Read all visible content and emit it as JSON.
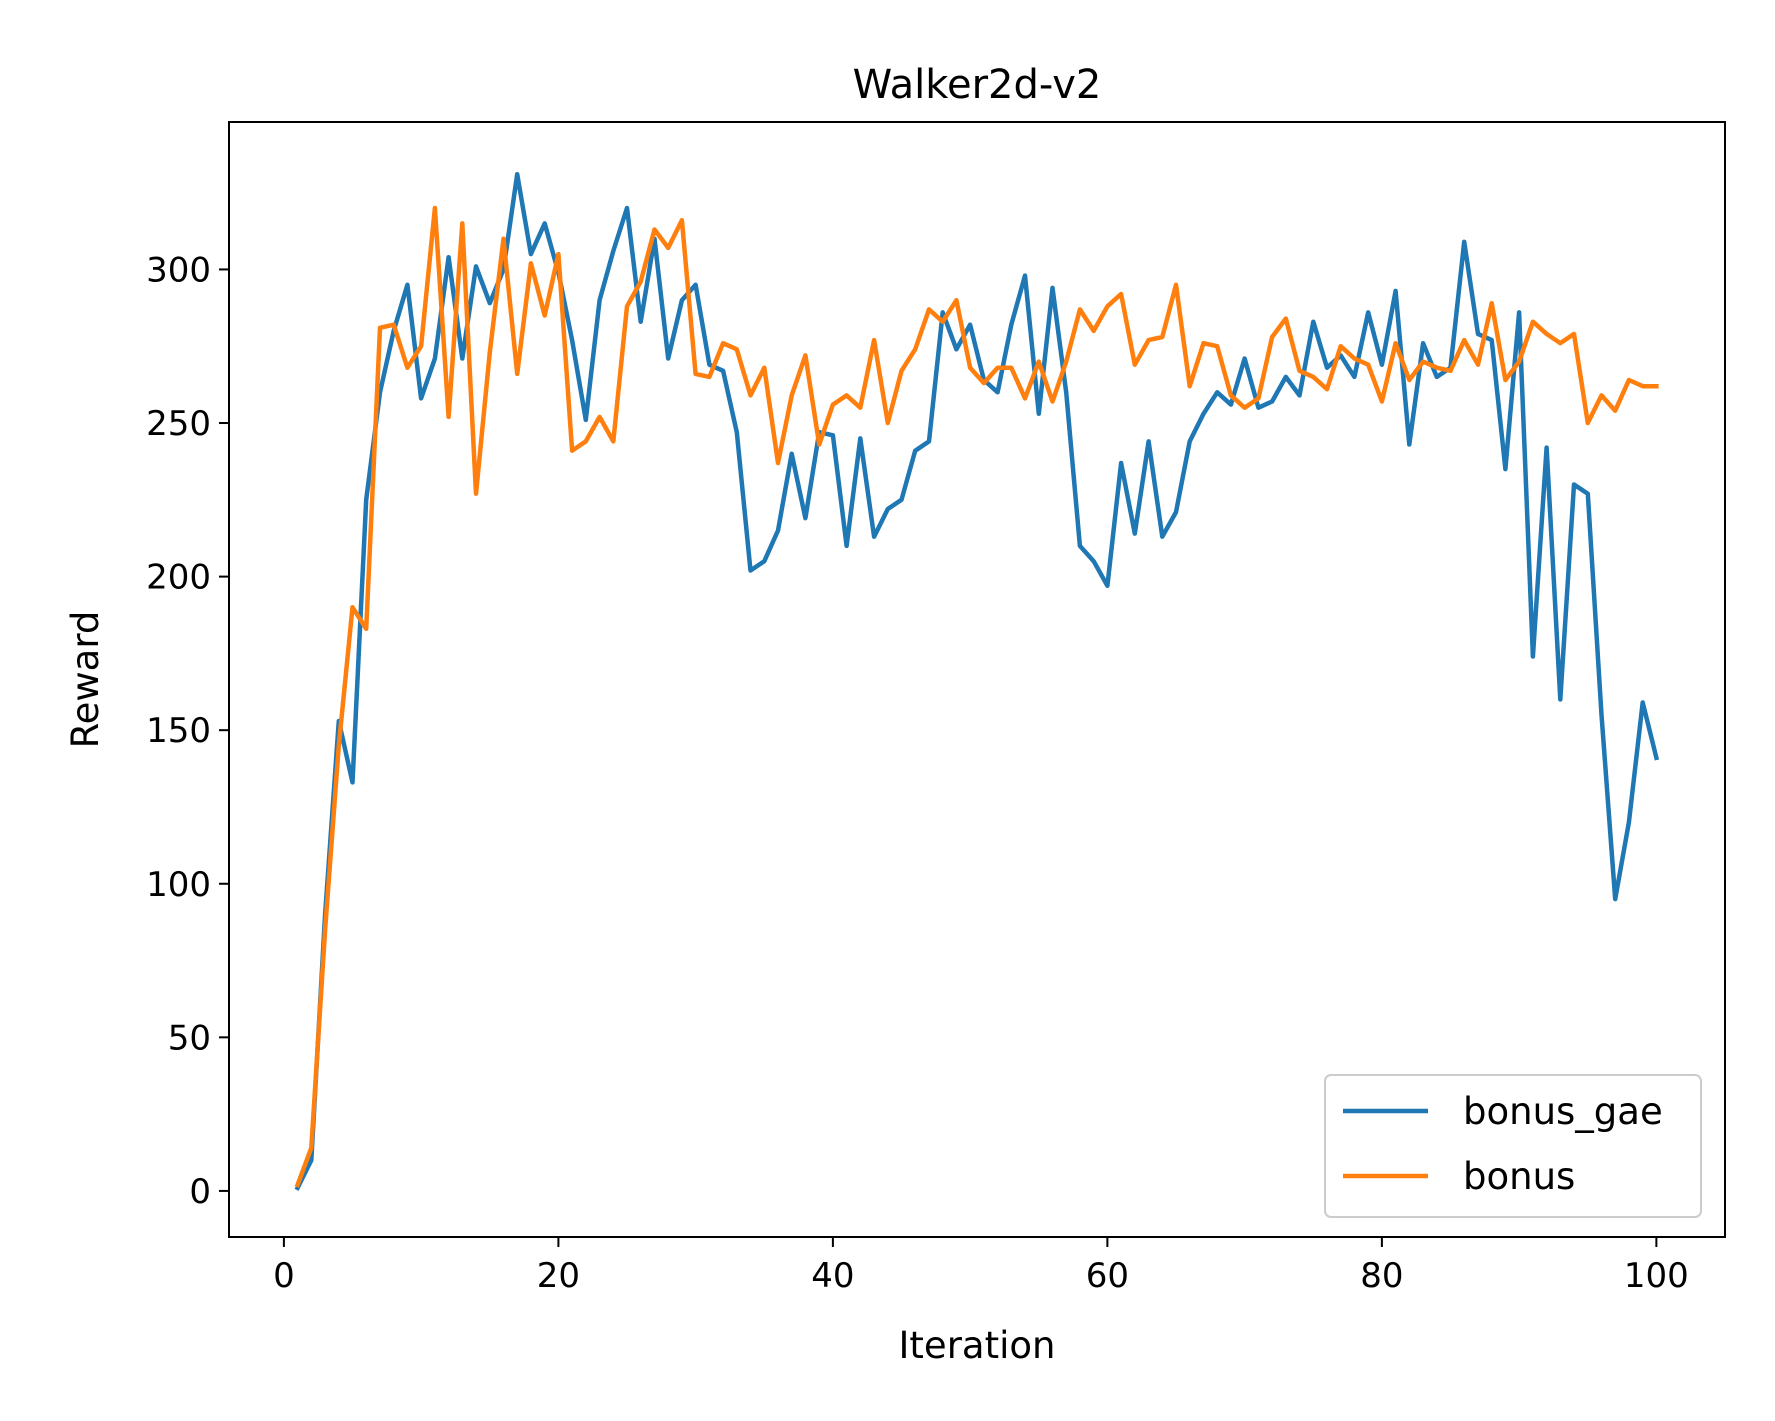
{
  "chart_data": {
    "type": "line",
    "title": "Walker2d-v2",
    "xlabel": "Iteration",
    "ylabel": "Reward",
    "xlim": [
      -4,
      105
    ],
    "ylim": [
      -15,
      348
    ],
    "x_ticks": [
      0,
      20,
      40,
      60,
      80,
      100
    ],
    "y_ticks": [
      0,
      50,
      100,
      150,
      200,
      250,
      300
    ],
    "grid": false,
    "legend_position": "lower-right",
    "x": [
      1,
      2,
      3,
      4,
      5,
      6,
      7,
      8,
      9,
      10,
      11,
      12,
      13,
      14,
      15,
      16,
      17,
      18,
      19,
      20,
      21,
      22,
      23,
      24,
      25,
      26,
      27,
      28,
      29,
      30,
      31,
      32,
      33,
      34,
      35,
      36,
      37,
      38,
      39,
      40,
      41,
      42,
      43,
      44,
      45,
      46,
      47,
      48,
      49,
      50,
      51,
      52,
      53,
      54,
      55,
      56,
      57,
      58,
      59,
      60,
      61,
      62,
      63,
      64,
      65,
      66,
      67,
      68,
      69,
      70,
      71,
      72,
      73,
      74,
      75,
      76,
      77,
      78,
      79,
      80,
      81,
      82,
      83,
      84,
      85,
      86,
      87,
      88,
      89,
      90,
      91,
      92,
      93,
      94,
      95,
      96,
      97,
      98,
      99,
      100
    ],
    "series": [
      {
        "name": "bonus_gae",
        "color": "#1f77b4",
        "values": [
          1,
          10,
          90,
          153,
          133,
          225,
          260,
          280,
          295,
          258,
          271,
          304,
          271,
          301,
          289,
          300,
          331,
          305,
          315,
          299,
          277,
          251,
          290,
          306,
          320,
          283,
          310,
          271,
          290,
          295,
          269,
          267,
          247,
          202,
          205,
          215,
          240,
          219,
          247,
          246,
          210,
          245,
          213,
          222,
          225,
          241,
          244,
          286,
          274,
          282,
          264,
          260,
          282,
          298,
          253,
          294,
          260,
          210,
          205,
          197,
          237,
          214,
          244,
          213,
          221,
          244,
          253,
          260,
          256,
          271,
          255,
          257,
          265,
          259,
          283,
          268,
          272,
          265,
          286,
          269,
          293,
          243,
          276,
          265,
          268,
          309,
          279,
          277,
          235,
          286,
          174,
          242,
          160,
          230,
          227,
          155,
          95,
          120,
          159,
          141
        ]
      },
      {
        "name": "bonus",
        "color": "#ff7f0e",
        "values": [
          2,
          14,
          85,
          145,
          190,
          183,
          281,
          282,
          268,
          275,
          320,
          252,
          315,
          227,
          273,
          310,
          266,
          302,
          285,
          305,
          241,
          244,
          252,
          244,
          288,
          296,
          313,
          307,
          316,
          266,
          265,
          276,
          274,
          259,
          268,
          237,
          259,
          272,
          243,
          256,
          259,
          255,
          277,
          250,
          267,
          274,
          287,
          283,
          290,
          268,
          263,
          268,
          268,
          258,
          270,
          257,
          270,
          287,
          280,
          288,
          292,
          269,
          277,
          278,
          295,
          262,
          276,
          275,
          259,
          255,
          258,
          278,
          284,
          267,
          265,
          261,
          275,
          271,
          269,
          257,
          276,
          264,
          270,
          268,
          267,
          277,
          269,
          289,
          264,
          270,
          283,
          279,
          276,
          279,
          250,
          259,
          254,
          264,
          262,
          262
        ]
      }
    ]
  }
}
